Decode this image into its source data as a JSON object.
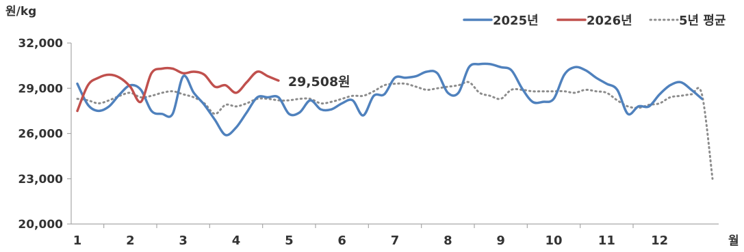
{
  "chart_data": {
    "type": "line",
    "title": "",
    "ylabel": "원/kg",
    "xlabel": "월",
    "ylim": [
      20000,
      32000
    ],
    "xlim": [
      1,
      13
    ],
    "yticks": [
      20000,
      23000,
      26000,
      29000,
      32000
    ],
    "ytick_labels": [
      "20,000",
      "23,000",
      "26,000",
      "29,000",
      "32,000"
    ],
    "xticks": [
      1,
      2,
      3,
      4,
      5,
      6,
      7,
      8,
      9,
      10,
      11,
      12
    ],
    "xtick_labels": [
      "1",
      "2",
      "3",
      "4",
      "5",
      "6",
      "7",
      "8",
      "9",
      "10",
      "11",
      "12"
    ],
    "grid": false,
    "legend_position": "top-right",
    "annotation": {
      "text": "29,508원",
      "series": "2026년"
    },
    "series": [
      {
        "name": "2025년",
        "color": "#4f81bd",
        "style": "solid",
        "points": [
          [
            1.0,
            29300
          ],
          [
            1.2,
            27900
          ],
          [
            1.4,
            27500
          ],
          [
            1.6,
            27800
          ],
          [
            1.8,
            28600
          ],
          [
            2.0,
            29200
          ],
          [
            2.2,
            28900
          ],
          [
            2.4,
            27500
          ],
          [
            2.6,
            27300
          ],
          [
            2.8,
            27300
          ],
          [
            3.0,
            29800
          ],
          [
            3.2,
            28700
          ],
          [
            3.4,
            27900
          ],
          [
            3.6,
            26900
          ],
          [
            3.8,
            25900
          ],
          [
            4.0,
            26400
          ],
          [
            4.2,
            27400
          ],
          [
            4.4,
            28400
          ],
          [
            4.6,
            28400
          ],
          [
            4.8,
            28400
          ],
          [
            5.0,
            27300
          ],
          [
            5.2,
            27400
          ],
          [
            5.4,
            28200
          ],
          [
            5.6,
            27600
          ],
          [
            5.8,
            27600
          ],
          [
            6.0,
            28000
          ],
          [
            6.2,
            28200
          ],
          [
            6.4,
            27200
          ],
          [
            6.6,
            28500
          ],
          [
            6.8,
            28600
          ],
          [
            7.0,
            29700
          ],
          [
            7.2,
            29700
          ],
          [
            7.4,
            29800
          ],
          [
            7.6,
            30100
          ],
          [
            7.8,
            30000
          ],
          [
            8.0,
            28700
          ],
          [
            8.2,
            28700
          ],
          [
            8.4,
            30400
          ],
          [
            8.6,
            30600
          ],
          [
            8.8,
            30600
          ],
          [
            9.0,
            30400
          ],
          [
            9.2,
            30200
          ],
          [
            9.4,
            29000
          ],
          [
            9.6,
            28100
          ],
          [
            9.8,
            28100
          ],
          [
            10.0,
            28300
          ],
          [
            10.2,
            29900
          ],
          [
            10.4,
            30400
          ],
          [
            10.6,
            30200
          ],
          [
            10.8,
            29700
          ],
          [
            11.0,
            29300
          ],
          [
            11.2,
            28900
          ],
          [
            11.4,
            27300
          ],
          [
            11.6,
            27800
          ],
          [
            11.8,
            27800
          ],
          [
            12.0,
            28600
          ],
          [
            12.2,
            29200
          ],
          [
            12.4,
            29400
          ],
          [
            12.6,
            28900
          ],
          [
            12.8,
            28300
          ]
        ]
      },
      {
        "name": "2026년",
        "color": "#c0504d",
        "style": "solid",
        "points": [
          [
            1.0,
            27500
          ],
          [
            1.2,
            29200
          ],
          [
            1.4,
            29700
          ],
          [
            1.6,
            29900
          ],
          [
            1.8,
            29700
          ],
          [
            2.0,
            29100
          ],
          [
            2.2,
            28100
          ],
          [
            2.4,
            30000
          ],
          [
            2.6,
            30300
          ],
          [
            2.8,
            30300
          ],
          [
            3.0,
            30000
          ],
          [
            3.2,
            30100
          ],
          [
            3.4,
            29900
          ],
          [
            3.6,
            29100
          ],
          [
            3.8,
            29200
          ],
          [
            4.0,
            28700
          ],
          [
            4.2,
            29400
          ],
          [
            4.4,
            30100
          ],
          [
            4.6,
            29800
          ],
          [
            4.8,
            29508
          ]
        ]
      },
      {
        "name": "5년 평균",
        "color": "#8c8c8c",
        "style": "dotted",
        "points": [
          [
            1.0,
            28300
          ],
          [
            1.2,
            28200
          ],
          [
            1.4,
            28000
          ],
          [
            1.6,
            28200
          ],
          [
            1.8,
            28500
          ],
          [
            2.0,
            28700
          ],
          [
            2.2,
            28400
          ],
          [
            2.4,
            28500
          ],
          [
            2.6,
            28700
          ],
          [
            2.8,
            28800
          ],
          [
            3.0,
            28600
          ],
          [
            3.2,
            28400
          ],
          [
            3.4,
            28000
          ],
          [
            3.6,
            27300
          ],
          [
            3.8,
            27900
          ],
          [
            4.0,
            27800
          ],
          [
            4.2,
            28000
          ],
          [
            4.4,
            28300
          ],
          [
            4.6,
            28300
          ],
          [
            4.8,
            28200
          ],
          [
            5.0,
            28200
          ],
          [
            5.2,
            28300
          ],
          [
            5.4,
            28300
          ],
          [
            5.6,
            28000
          ],
          [
            5.8,
            28100
          ],
          [
            6.0,
            28300
          ],
          [
            6.2,
            28500
          ],
          [
            6.4,
            28500
          ],
          [
            6.6,
            28800
          ],
          [
            6.8,
            29200
          ],
          [
            7.0,
            29300
          ],
          [
            7.2,
            29300
          ],
          [
            7.4,
            29100
          ],
          [
            7.6,
            28900
          ],
          [
            7.8,
            29000
          ],
          [
            8.0,
            29100
          ],
          [
            8.2,
            29200
          ],
          [
            8.4,
            29400
          ],
          [
            8.6,
            28700
          ],
          [
            8.8,
            28500
          ],
          [
            9.0,
            28300
          ],
          [
            9.2,
            28900
          ],
          [
            9.4,
            28900
          ],
          [
            9.6,
            28800
          ],
          [
            9.8,
            28800
          ],
          [
            10.0,
            28800
          ],
          [
            10.2,
            28800
          ],
          [
            10.4,
            28700
          ],
          [
            10.6,
            28900
          ],
          [
            10.8,
            28800
          ],
          [
            11.0,
            28700
          ],
          [
            11.2,
            28200
          ],
          [
            11.4,
            27800
          ],
          [
            11.6,
            27700
          ],
          [
            11.8,
            27900
          ],
          [
            12.0,
            28000
          ],
          [
            12.2,
            28400
          ],
          [
            12.4,
            28500
          ],
          [
            12.6,
            28600
          ],
          [
            12.8,
            28600
          ],
          [
            13.0,
            23000
          ]
        ]
      }
    ]
  }
}
